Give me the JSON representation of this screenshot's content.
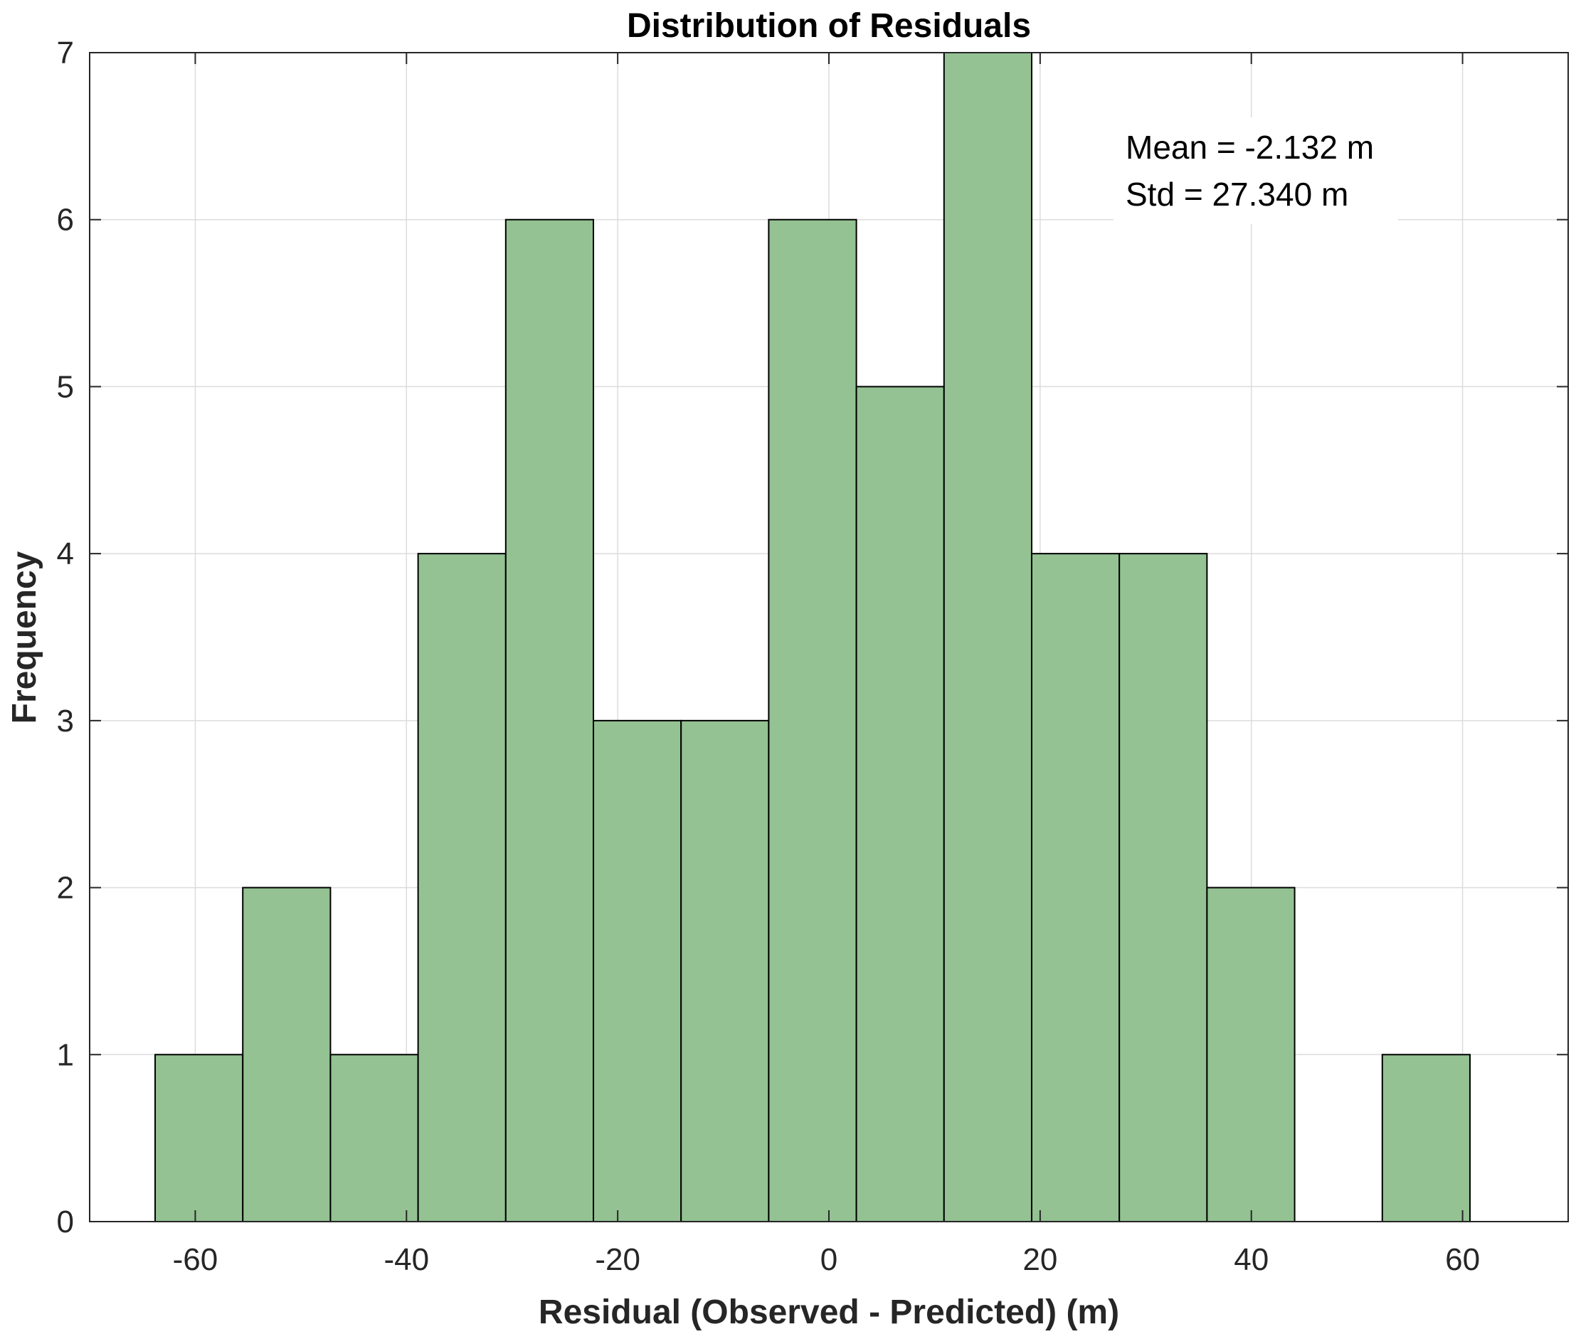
{
  "chart_data": {
    "type": "bar",
    "title": "Distribution of Residuals",
    "xlabel": "Residual (Observed - Predicted) (m)",
    "ylabel": "Frequency",
    "xlim": [
      -70,
      70
    ],
    "ylim": [
      0,
      7
    ],
    "xticks": [
      -60,
      -40,
      -20,
      0,
      20,
      40,
      60
    ],
    "xtick_labels": [
      "-60",
      "-40",
      "-20",
      "0",
      "20",
      "40",
      "60"
    ],
    "yticks": [
      0,
      1,
      2,
      3,
      4,
      5,
      6,
      7
    ],
    "ytick_labels": [
      "0",
      "1",
      "2",
      "3",
      "4",
      "5",
      "6",
      "7"
    ],
    "grid": true,
    "bin_edges": [
      -63.8,
      -55.5,
      -47.2,
      -38.9,
      -30.6,
      -22.3,
      -14.0,
      -5.7,
      2.6,
      10.9,
      19.2,
      27.5,
      35.8,
      44.1,
      52.4,
      60.7
    ],
    "counts": [
      1,
      2,
      1,
      4,
      6,
      3,
      3,
      6,
      5,
      7,
      4,
      4,
      2,
      0,
      1
    ],
    "bar_color": "#94c293",
    "edge_color": "#000000",
    "annotation": {
      "lines": [
        "Mean = -2.132 m",
        "Std = 27.340 m"
      ],
      "position": "top-right"
    }
  }
}
